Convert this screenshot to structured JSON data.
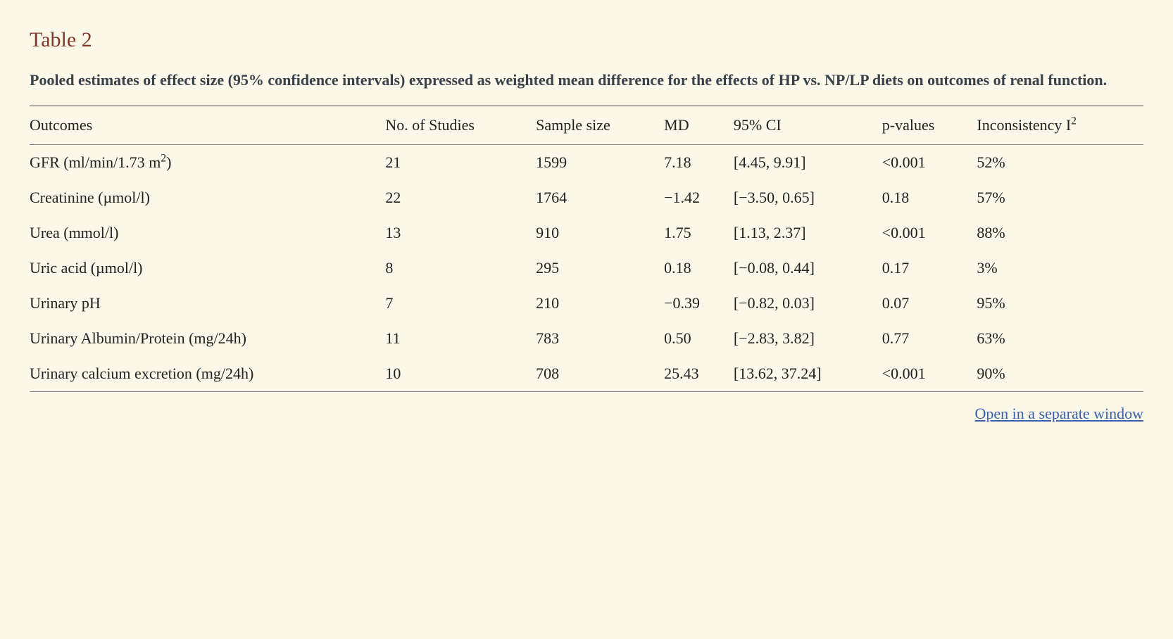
{
  "table": {
    "type": "table",
    "label": "Table 2",
    "caption": "Pooled estimates of effect size (95% confidence intervals) expressed as weighted mean difference for the effects of HP vs. NP/LP diets on outcomes of renal function.",
    "background_color": "#fbf8e9",
    "title_color": "#813828",
    "caption_color": "#39414a",
    "text_color": "#222222",
    "rule_color_top": "#444444",
    "rule_color": "#888888",
    "font_family": "Georgia, serif",
    "title_fontsize": 30,
    "caption_fontsize": 22,
    "cell_fontsize": 22,
    "columns": [
      {
        "key": "outcome",
        "label_html": "Outcomes",
        "align": "left"
      },
      {
        "key": "n_studies",
        "label_html": "No. of Studies",
        "align": "left"
      },
      {
        "key": "sample",
        "label_html": "Sample size",
        "align": "left"
      },
      {
        "key": "md",
        "label_html": "MD",
        "align": "left"
      },
      {
        "key": "ci",
        "label_html": "95% CI",
        "align": "left"
      },
      {
        "key": "p",
        "label_html": "p-values",
        "align": "left"
      },
      {
        "key": "i2",
        "label_html": "Inconsistency I<sup>2</sup>",
        "align": "left"
      }
    ],
    "rows": [
      {
        "outcome_html": "GFR (ml/min/1.73 m<sup>2</sup>)",
        "n_studies": "21",
        "sample": "1599",
        "md": "7.18",
        "ci": "[4.45, 9.91]",
        "p": "<0.001",
        "i2": "52%"
      },
      {
        "outcome_html": "Creatinine (µmol/l)",
        "n_studies": "22",
        "sample": "1764",
        "md": "−1.42",
        "ci": "[−3.50, 0.65]",
        "p": "0.18",
        "i2": "57%"
      },
      {
        "outcome_html": "Urea (mmol/l)",
        "n_studies": "13",
        "sample": "910",
        "md": "1.75",
        "ci": "[1.13, 2.37]",
        "p": "<0.001",
        "i2": "88%"
      },
      {
        "outcome_html": "Uric acid (µmol/l)",
        "n_studies": "8",
        "sample": "295",
        "md": "0.18",
        "ci": "[−0.08, 0.44]",
        "p": "0.17",
        "i2": "3%"
      },
      {
        "outcome_html": "Urinary pH",
        "n_studies": "7",
        "sample": "210",
        "md": "−0.39",
        "ci": "[−0.82, 0.03]",
        "p": "0.07",
        "i2": "95%"
      },
      {
        "outcome_html": "Urinary Albumin/Protein (mg/24h)",
        "n_studies": "11",
        "sample": "783",
        "md": "0.50",
        "ci": "[−2.83, 3.82]",
        "p": "0.77",
        "i2": "63%"
      },
      {
        "outcome_html": "Urinary calcium excretion (mg/24h)",
        "n_studies": "10",
        "sample": "708",
        "md": "25.43",
        "ci": "[13.62, 37.24]",
        "p": "<0.001",
        "i2": "90%"
      }
    ]
  },
  "link": {
    "label": "Open in a separate window",
    "color": "#3a5fb0"
  }
}
